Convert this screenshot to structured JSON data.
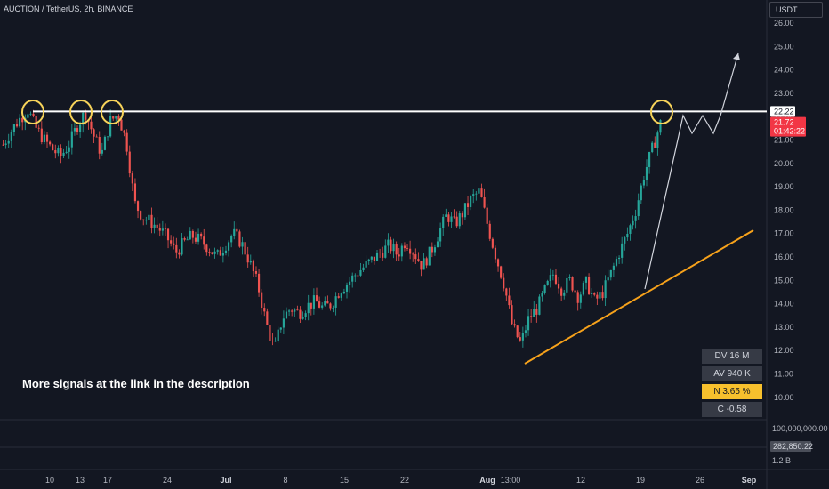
{
  "header": {
    "symbol_title": "AUCTION / TetherUS, 2h, BINANCE",
    "currency": "USDT"
  },
  "annotation": {
    "text": "More signals at the link in the description"
  },
  "stats": [
    {
      "label": "DV 16 M",
      "highlight": false
    },
    {
      "label": "AV 940 K",
      "highlight": false
    },
    {
      "label": "N 3.65 %",
      "highlight": true
    },
    {
      "label": "C  -0.58",
      "highlight": false
    }
  ],
  "price_tags": {
    "level": "22.22",
    "last_price": "21.72",
    "countdown": "01:42:22",
    "volume_value": "282,850.22"
  },
  "volume_axis": {
    "top_label": "100,000,000.00",
    "bottom_label": "1.2 B"
  },
  "colors": {
    "background": "#131722",
    "up": "#26a69a",
    "down": "#ef5350",
    "level_line": "#ffffff",
    "trendline": "#f7a21b",
    "highlight_circle": "#f7d35a",
    "last_price_tag": "#f23645"
  },
  "chart_data": {
    "type": "candlestick",
    "title": "AUCTION / TetherUS, 2h, BINANCE",
    "y_ticks": [
      "26.00",
      "25.00",
      "24.00",
      "23.00",
      "22.00",
      "21.00",
      "20.00",
      "19.00",
      "18.00",
      "17.00",
      "16.00",
      "15.00",
      "14.00",
      "13.00",
      "12.00",
      "11.00",
      "10.00"
    ],
    "ylim": [
      9.5,
      26.3
    ],
    "x_ticks": [
      {
        "label": "10",
        "bold": false
      },
      {
        "label": "13",
        "bold": false
      },
      {
        "label": "17",
        "bold": false
      },
      {
        "label": "24",
        "bold": false
      },
      {
        "label": "Jul",
        "bold": true
      },
      {
        "label": "8",
        "bold": false
      },
      {
        "label": "15",
        "bold": false
      },
      {
        "label": "22",
        "bold": false
      },
      {
        "label": "Aug",
        "bold": true
      },
      {
        "label": "13:00",
        "bold": false
      },
      {
        "label": "12",
        "bold": false
      },
      {
        "label": "19",
        "bold": false
      },
      {
        "label": "26",
        "bold": false
      },
      {
        "label": "Sep",
        "bold": true
      }
    ],
    "price_path": [
      {
        "t": 0,
        "close": 20.8
      },
      {
        "t": 1,
        "close": 21.4
      },
      {
        "t": 2,
        "close": 21.9
      },
      {
        "t": 3,
        "close": 22.3
      },
      {
        "t": 4,
        "close": 21.5
      },
      {
        "t": 5,
        "close": 21.0
      },
      {
        "t": 6,
        "close": 20.6
      },
      {
        "t": 7,
        "close": 20.3
      },
      {
        "t": 8,
        "close": 20.8
      },
      {
        "t": 9,
        "close": 21.6
      },
      {
        "t": 10,
        "close": 22.2
      },
      {
        "t": 11,
        "close": 21.2
      },
      {
        "t": 12,
        "close": 20.4
      },
      {
        "t": 13,
        "close": 21.8
      },
      {
        "t": 14,
        "close": 22.1
      },
      {
        "t": 15,
        "close": 20.9
      },
      {
        "t": 16,
        "close": 18.3
      },
      {
        "t": 17,
        "close": 17.7
      },
      {
        "t": 18,
        "close": 17.5
      },
      {
        "t": 19,
        "close": 17.2
      },
      {
        "t": 20,
        "close": 16.8
      },
      {
        "t": 21,
        "close": 16.2
      },
      {
        "t": 22,
        "close": 16.6
      },
      {
        "t": 23,
        "close": 16.9
      },
      {
        "t": 24,
        "close": 16.7
      },
      {
        "t": 25,
        "close": 16.4
      },
      {
        "t": 26,
        "close": 16.0
      },
      {
        "t": 27,
        "close": 16.5
      },
      {
        "t": 28,
        "close": 17.0
      },
      {
        "t": 29,
        "close": 16.6
      },
      {
        "t": 30,
        "close": 15.8
      },
      {
        "t": 31,
        "close": 14.8
      },
      {
        "t": 32,
        "close": 13.2
      },
      {
        "t": 33,
        "close": 12.0
      },
      {
        "t": 34,
        "close": 13.4
      },
      {
        "t": 35,
        "close": 13.8
      },
      {
        "t": 36,
        "close": 13.6
      },
      {
        "t": 37,
        "close": 13.9
      },
      {
        "t": 38,
        "close": 14.1
      },
      {
        "t": 39,
        "close": 13.8
      },
      {
        "t": 40,
        "close": 14.0
      },
      {
        "t": 41,
        "close": 14.6
      },
      {
        "t": 42,
        "close": 14.9
      },
      {
        "t": 43,
        "close": 15.3
      },
      {
        "t": 44,
        "close": 15.6
      },
      {
        "t": 45,
        "close": 15.9
      },
      {
        "t": 46,
        "close": 16.2
      },
      {
        "t": 47,
        "close": 16.5
      },
      {
        "t": 48,
        "close": 16.1
      },
      {
        "t": 49,
        "close": 16.7
      },
      {
        "t": 50,
        "close": 16.2
      },
      {
        "t": 51,
        "close": 15.6
      },
      {
        "t": 52,
        "close": 16.2
      },
      {
        "t": 53,
        "close": 17.0
      },
      {
        "t": 54,
        "close": 17.8
      },
      {
        "t": 55,
        "close": 17.4
      },
      {
        "t": 56,
        "close": 17.9
      },
      {
        "t": 57,
        "close": 18.5
      },
      {
        "t": 58,
        "close": 18.8
      },
      {
        "t": 59,
        "close": 17.3
      },
      {
        "t": 60,
        "close": 16.0
      },
      {
        "t": 61,
        "close": 14.8
      },
      {
        "t": 62,
        "close": 13.0
      },
      {
        "t": 63,
        "close": 12.3
      },
      {
        "t": 64,
        "close": 13.4
      },
      {
        "t": 65,
        "close": 13.8
      },
      {
        "t": 66,
        "close": 14.6
      },
      {
        "t": 67,
        "close": 15.3
      },
      {
        "t": 68,
        "close": 14.6
      },
      {
        "t": 69,
        "close": 15.0
      },
      {
        "t": 70,
        "close": 14.3
      },
      {
        "t": 71,
        "close": 14.9
      },
      {
        "t": 72,
        "close": 14.1
      },
      {
        "t": 73,
        "close": 14.5
      },
      {
        "t": 74,
        "close": 15.3
      },
      {
        "t": 75,
        "close": 16.2
      },
      {
        "t": 76,
        "close": 17.0
      },
      {
        "t": 77,
        "close": 18.0
      },
      {
        "t": 78,
        "close": 19.5
      },
      {
        "t": 79,
        "close": 20.6
      },
      {
        "t": 80,
        "close": 21.7
      }
    ],
    "resistance_level": 22.22,
    "last_price": 21.72
  }
}
